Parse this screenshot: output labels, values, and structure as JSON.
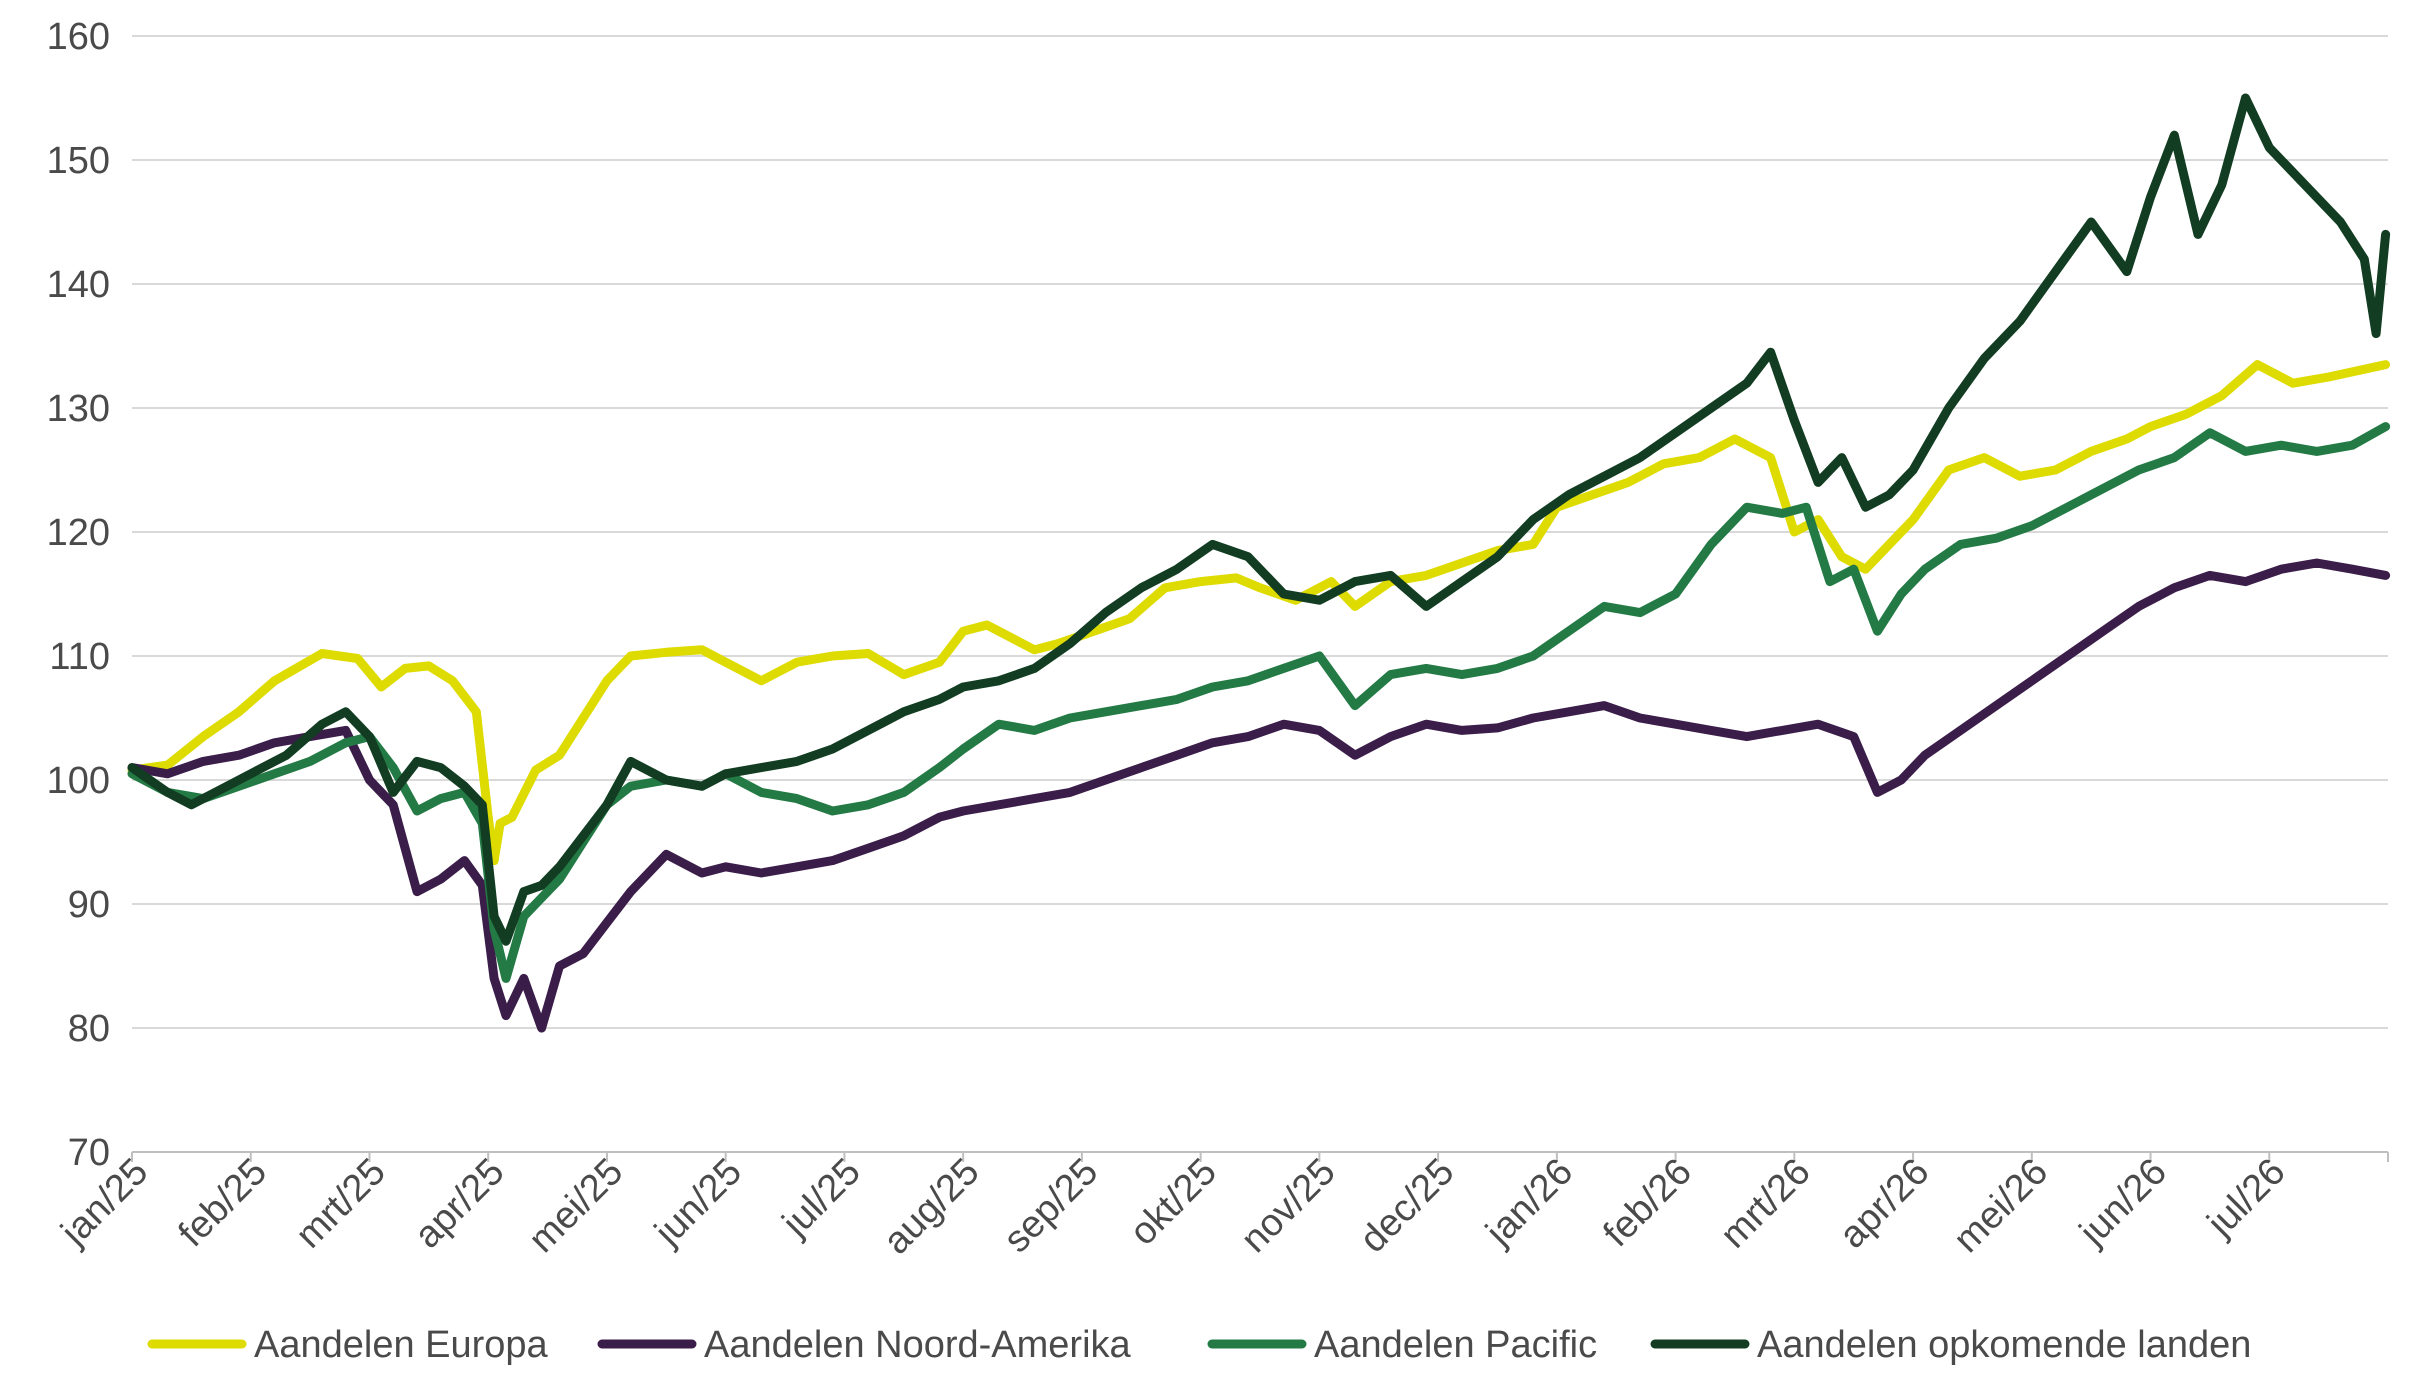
{
  "chart_data": {
    "type": "line",
    "title": "",
    "xlabel": "",
    "ylabel": "",
    "ylim": [
      70,
      160
    ],
    "yticks": [
      70,
      80,
      90,
      100,
      110,
      120,
      130,
      140,
      150,
      160
    ],
    "grid": true,
    "legend_position": "bottom",
    "months": [
      "jan/25",
      "feb/25",
      "mrt/25",
      "apr/25",
      "mei/25",
      "jun/25",
      "jul/25",
      "aug/25",
      "sep/25",
      "okt/25",
      "nov/25",
      "dec/25",
      "jan/26",
      "feb/26",
      "mrt/26",
      "apr/26",
      "mei/26",
      "jun/26",
      "jul/26"
    ],
    "series": [
      {
        "name": "Aandelen Europa",
        "color": "#dedb00",
        "x": [
          0,
          0.3,
          0.6,
          0.9,
          1.2,
          1.6,
          1.9,
          2.1,
          2.3,
          2.5,
          2.7,
          2.9,
          3.0,
          3.05,
          3.1,
          3.2,
          3.4,
          3.6,
          3.8,
          4.0,
          4.2,
          4.5,
          4.8,
          5.0,
          5.3,
          5.6,
          5.9,
          6.2,
          6.5,
          6.8,
          7.0,
          7.2,
          7.4,
          7.6,
          7.8,
          8.1,
          8.4,
          8.7,
          9.0,
          9.3,
          9.5,
          9.8,
          10.1,
          10.3,
          10.6,
          10.9,
          11.2,
          11.5,
          11.8,
          12.0,
          12.3,
          12.6,
          12.9,
          13.2,
          13.5,
          13.8,
          14.0,
          14.2,
          14.4,
          14.6,
          14.8,
          15.0,
          15.3,
          15.6,
          15.9,
          16.2,
          16.5,
          16.8,
          17.0,
          17.3,
          17.6,
          17.9,
          18.2,
          18.5,
          18.98
        ],
        "values": [
          100.8,
          101.2,
          103.5,
          105.5,
          108.0,
          110.2,
          109.8,
          107.5,
          109.0,
          109.2,
          108.0,
          105.5,
          97.0,
          93.5,
          96.5,
          97.0,
          100.8,
          102.0,
          105.0,
          108.0,
          110.0,
          110.3,
          110.5,
          109.5,
          108.0,
          109.5,
          110.0,
          110.2,
          108.5,
          109.5,
          112.0,
          112.5,
          111.5,
          110.5,
          111.0,
          112.0,
          113.0,
          115.5,
          116.0,
          116.3,
          115.5,
          114.5,
          116.0,
          114.0,
          116.0,
          116.5,
          117.5,
          118.5,
          119.0,
          122.0,
          123.0,
          124.0,
          125.5,
          126.0,
          127.5,
          126.0,
          120.0,
          121.0,
          118.0,
          117.0,
          119.0,
          121.0,
          125.0,
          126.0,
          124.5,
          125.0,
          126.5,
          127.5,
          128.5,
          129.5,
          131.0,
          133.5,
          132.0,
          132.5,
          133.5
        ]
      },
      {
        "name": "Aandelen Noord-Amerika",
        "color": "#3b1d4a",
        "x": [
          0,
          0.3,
          0.6,
          0.9,
          1.2,
          1.5,
          1.8,
          2.0,
          2.2,
          2.4,
          2.6,
          2.8,
          2.95,
          3.05,
          3.15,
          3.3,
          3.45,
          3.6,
          3.8,
          4.0,
          4.2,
          4.5,
          4.8,
          5.0,
          5.3,
          5.6,
          5.9,
          6.2,
          6.5,
          6.8,
          7.0,
          7.3,
          7.6,
          7.9,
          8.2,
          8.5,
          8.8,
          9.1,
          9.4,
          9.7,
          10.0,
          10.3,
          10.6,
          10.9,
          11.2,
          11.5,
          11.8,
          12.1,
          12.4,
          12.7,
          13.0,
          13.3,
          13.6,
          13.9,
          14.2,
          14.5,
          14.7,
          14.9,
          15.1,
          15.4,
          15.7,
          16.0,
          16.3,
          16.6,
          16.9,
          17.2,
          17.5,
          17.8,
          18.1,
          18.4,
          18.7,
          18.98
        ],
        "values": [
          101.0,
          100.5,
          101.5,
          102.0,
          103.0,
          103.5,
          104.0,
          100.0,
          98.0,
          91.0,
          92.0,
          93.5,
          91.5,
          84.0,
          81.0,
          84.0,
          80.0,
          85.0,
          86.0,
          88.5,
          91.0,
          94.0,
          92.5,
          93.0,
          92.5,
          93.0,
          93.5,
          94.5,
          95.5,
          97.0,
          97.5,
          98.0,
          98.5,
          99.0,
          100.0,
          101.0,
          102.0,
          103.0,
          103.5,
          104.5,
          104.0,
          102.0,
          103.5,
          104.5,
          104.0,
          104.2,
          105.0,
          105.5,
          106.0,
          105.0,
          104.5,
          104.0,
          103.5,
          104.0,
          104.5,
          103.5,
          99.0,
          100.0,
          102.0,
          104.0,
          106.0,
          108.0,
          110.0,
          112.0,
          114.0,
          115.5,
          116.5,
          116.0,
          117.0,
          117.5,
          117.0,
          116.5
        ]
      },
      {
        "name": "Aandelen Pacific",
        "color": "#237a45",
        "x": [
          0,
          0.3,
          0.6,
          0.9,
          1.2,
          1.5,
          1.8,
          2.0,
          2.2,
          2.4,
          2.6,
          2.8,
          2.95,
          3.05,
          3.15,
          3.3,
          3.45,
          3.6,
          3.8,
          4.0,
          4.2,
          4.5,
          4.8,
          5.0,
          5.3,
          5.6,
          5.9,
          6.2,
          6.5,
          6.8,
          7.0,
          7.3,
          7.6,
          7.9,
          8.2,
          8.5,
          8.8,
          9.1,
          9.4,
          9.7,
          10.0,
          10.3,
          10.6,
          10.9,
          11.2,
          11.5,
          11.8,
          12.1,
          12.4,
          12.7,
          13.0,
          13.3,
          13.6,
          13.9,
          14.1,
          14.3,
          14.5,
          14.7,
          14.9,
          15.1,
          15.4,
          15.7,
          16.0,
          16.3,
          16.6,
          16.9,
          17.2,
          17.5,
          17.8,
          18.1,
          18.4,
          18.7,
          18.98
        ],
        "values": [
          100.5,
          99.0,
          98.5,
          99.5,
          100.5,
          101.5,
          103.0,
          103.5,
          101.0,
          97.5,
          98.5,
          99.0,
          96.5,
          88.0,
          84.0,
          89.0,
          90.5,
          92.0,
          95.0,
          98.0,
          99.5,
          100.0,
          99.5,
          100.5,
          99.0,
          98.5,
          97.5,
          98.0,
          99.0,
          101.0,
          102.5,
          104.5,
          104.0,
          105.0,
          105.5,
          106.0,
          106.5,
          107.5,
          108.0,
          109.0,
          110.0,
          106.0,
          108.5,
          109.0,
          108.5,
          109.0,
          110.0,
          112.0,
          114.0,
          113.5,
          115.0,
          119.0,
          122.0,
          121.5,
          122.0,
          116.0,
          117.0,
          112.0,
          115.0,
          117.0,
          119.0,
          119.5,
          120.5,
          122.0,
          123.5,
          125.0,
          126.0,
          128.0,
          126.5,
          127.0,
          126.5,
          127.0,
          128.5
        ]
      },
      {
        "name": "Aandelen opkomende landen",
        "color": "#123d22",
        "x": [
          0,
          0.3,
          0.5,
          0.8,
          1.0,
          1.3,
          1.6,
          1.8,
          2.0,
          2.2,
          2.4,
          2.6,
          2.8,
          2.95,
          3.05,
          3.15,
          3.3,
          3.45,
          3.6,
          3.8,
          4.0,
          4.2,
          4.5,
          4.8,
          5.0,
          5.3,
          5.6,
          5.9,
          6.2,
          6.5,
          6.8,
          7.0,
          7.3,
          7.6,
          7.9,
          8.2,
          8.5,
          8.8,
          9.1,
          9.4,
          9.7,
          10.0,
          10.3,
          10.6,
          10.9,
          11.2,
          11.5,
          11.8,
          12.1,
          12.4,
          12.7,
          13.0,
          13.3,
          13.6,
          13.8,
          14.0,
          14.2,
          14.4,
          14.6,
          14.8,
          15.0,
          15.3,
          15.6,
          15.9,
          16.2,
          16.5,
          16.8,
          17.0,
          17.2,
          17.4,
          17.6,
          17.8,
          18.0,
          18.2,
          18.4,
          18.6,
          18.8,
          18.9,
          18.98
        ],
        "values": [
          101.0,
          99.0,
          98.0,
          99.5,
          100.5,
          102.0,
          104.5,
          105.5,
          103.5,
          99.0,
          101.5,
          101.0,
          99.5,
          98.0,
          89.0,
          87.0,
          91.0,
          91.5,
          93.0,
          95.5,
          98.0,
          101.5,
          100.0,
          99.5,
          100.5,
          101.0,
          101.5,
          102.5,
          104.0,
          105.5,
          106.5,
          107.5,
          108.0,
          109.0,
          111.0,
          113.5,
          115.5,
          117.0,
          119.0,
          118.0,
          115.0,
          114.5,
          116.0,
          116.5,
          114.0,
          116.0,
          118.0,
          121.0,
          123.0,
          124.5,
          126.0,
          128.0,
          130.0,
          132.0,
          134.5,
          129.0,
          124.0,
          126.0,
          122.0,
          123.0,
          125.0,
          130.0,
          134.0,
          137.0,
          141.0,
          145.0,
          141.0,
          147.0,
          152.0,
          144.0,
          148.0,
          155.0,
          151.0,
          149.0,
          147.0,
          145.0,
          142.0,
          136.0,
          144.0
        ]
      }
    ]
  }
}
